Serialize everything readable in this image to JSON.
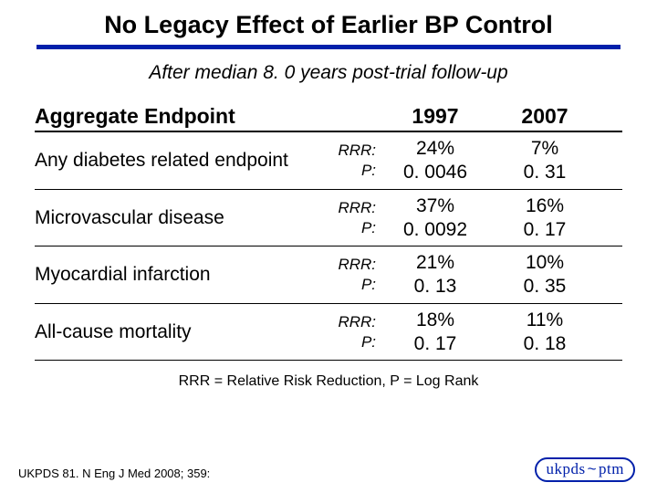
{
  "title": "No Legacy Effect of Earlier BP Control",
  "subtitle": "After median 8. 0 years post-trial follow-up",
  "columns": {
    "endpoint_header": "Aggregate Endpoint",
    "year1": "1997",
    "year2": "2007"
  },
  "row_labels": {
    "rrr": "RRR:",
    "p": "P:"
  },
  "rows": [
    {
      "endpoint": "Any diabetes related endpoint",
      "rrr1": "24%",
      "p1": "0. 0046",
      "rrr2": "7%",
      "p2": "0. 31"
    },
    {
      "endpoint": "Microvascular disease",
      "rrr1": "37%",
      "p1": "0. 0092",
      "rrr2": "16%",
      "p2": "0. 17"
    },
    {
      "endpoint": "Myocardial infarction",
      "rrr1": "21%",
      "p1": "0. 13",
      "rrr2": "10%",
      "p2": "0. 35"
    },
    {
      "endpoint": "All-cause mortality",
      "rrr1": "18%",
      "p1": "0. 17",
      "rrr2": "11%",
      "p2": "0. 18"
    }
  ],
  "footnote": "RRR = Relative Risk Reduction, P = Log Rank",
  "citation": "UKPDS 81. N Eng J Med 2008; 359:",
  "logo": {
    "left": "ukpds",
    "sep": "~",
    "right": "ptm"
  },
  "colors": {
    "accent": "#0020aa",
    "text": "#000000",
    "background": "#ffffff"
  }
}
